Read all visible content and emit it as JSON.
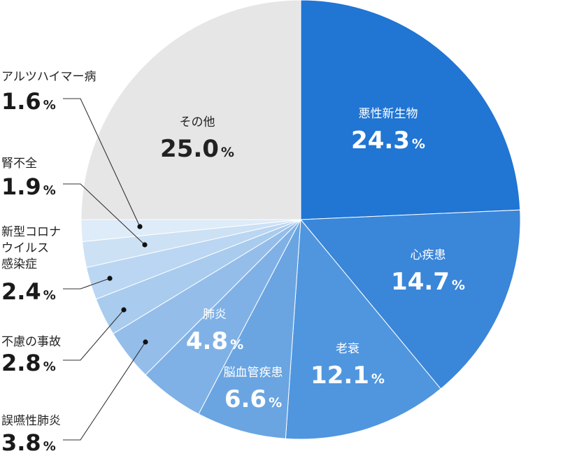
{
  "chart_data": {
    "type": "pie",
    "slices": [
      {
        "label": "悪性新生物",
        "value": 24.3,
        "pct": "24.3",
        "color": "#2175d3",
        "text_color": "#ffffff"
      },
      {
        "label": "心疾患",
        "value": 14.7,
        "pct": "14.7",
        "color": "#3a86d9",
        "text_color": "#ffffff"
      },
      {
        "label": "老衰",
        "value": 12.1,
        "pct": "12.1",
        "color": "#5096df",
        "text_color": "#ffffff"
      },
      {
        "label": "脳血管疾患",
        "value": 6.6,
        "pct": "6.6",
        "color": "#6aa5e2",
        "text_color": "#ffffff"
      },
      {
        "label": "肺炎",
        "value": 4.8,
        "pct": "4.8",
        "color": "#7fb1e6",
        "text_color": "#ffffff"
      },
      {
        "label": "誤嚥性肺炎",
        "value": 3.8,
        "pct": "3.8",
        "color": "#94bee9",
        "text_color": "#222222"
      },
      {
        "label": "不慮の事故",
        "value": 2.8,
        "pct": "2.8",
        "color": "#a8cbee",
        "text_color": "#222222"
      },
      {
        "label": "新型コロナ\nウイルス\n感染症",
        "value": 2.4,
        "pct": "2.4",
        "color": "#bad6f2",
        "text_color": "#222222"
      },
      {
        "label": "腎不全",
        "value": 1.9,
        "pct": "1.9",
        "color": "#cde1f5",
        "text_color": "#222222"
      },
      {
        "label": "アルツハイマー病",
        "value": 1.6,
        "pct": "1.6",
        "color": "#deebf8",
        "text_color": "#222222"
      },
      {
        "label": "その他",
        "value": 25.0,
        "pct": "25.0",
        "color": "#e6e6e6",
        "text_color": "#222222"
      }
    ],
    "percent_sign": "%",
    "start": "top",
    "direction": "clockwise",
    "legend": "none"
  }
}
